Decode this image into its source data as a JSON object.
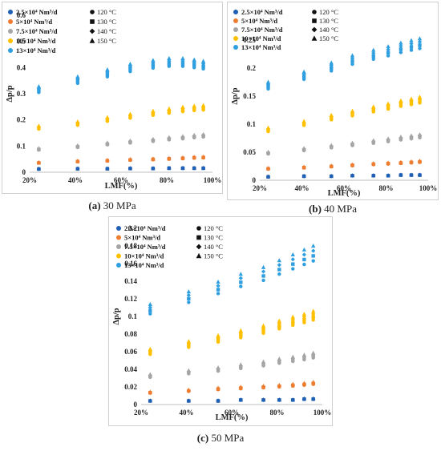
{
  "legend": {
    "flows": [
      "2.5×10⁴ Nm³/d",
      "5×10⁴ Nm³/d",
      "7.5×10⁴ Nm³/d",
      "10×10⁴ Nm³/d",
      "13×10⁴ Nm³/d"
    ],
    "temps": [
      "120 °C",
      "130 °C",
      "140 °C",
      "150 °C"
    ]
  },
  "colors": {
    "series": [
      "#1f5fb4",
      "#ed7d31",
      "#a5a5a5",
      "#ffc000",
      "#2f9fe0"
    ],
    "temp_markers": [
      "circle",
      "square",
      "diamond",
      "triangle"
    ]
  },
  "chart_data": [
    {
      "type": "scatter",
      "title": "",
      "caption_bold": "(a)",
      "caption_rest": " 30 MPa",
      "xlabel": "LMF(%)",
      "ylabel": "Δp/p",
      "x": [
        24,
        41,
        54,
        64,
        74,
        81,
        87,
        92,
        96
      ],
      "xticks": [
        "20%",
        "40%",
        "60%",
        "80%",
        "100%"
      ],
      "xlim": [
        20,
        100
      ],
      "ylim": [
        0,
        0.6
      ],
      "yticks": [
        "0",
        "0.1",
        "0.2",
        "0.3",
        "0.4",
        "0.5",
        "0.6"
      ],
      "series": [
        {
          "name": "2.5×10⁴ Nm³/d",
          "values": [
            0.012,
            0.013,
            0.013,
            0.014,
            0.014,
            0.015,
            0.015,
            0.015,
            0.015
          ]
        },
        {
          "name": "5×10⁴ Nm³/d",
          "values": [
            0.035,
            0.04,
            0.043,
            0.046,
            0.048,
            0.05,
            0.052,
            0.054,
            0.055
          ]
        },
        {
          "name": "7.5×10⁴ Nm³/d",
          "values": [
            0.085,
            0.095,
            0.105,
            0.112,
            0.118,
            0.124,
            0.128,
            0.132,
            0.135
          ]
        },
        {
          "name": "10×10⁴ Nm³/d",
          "values": [
            0.165,
            0.18,
            0.195,
            0.207,
            0.218,
            0.226,
            0.232,
            0.236,
            0.238
          ]
        },
        {
          "name": "13×10⁴ Nm³/d",
          "values": [
            0.305,
            0.34,
            0.365,
            0.385,
            0.398,
            0.405,
            0.405,
            0.4,
            0.395
          ]
        }
      ],
      "temp_spread": [
        0,
        0.025,
        0.05,
        0.075
      ]
    },
    {
      "type": "scatter",
      "title": "",
      "caption_bold": "(b)",
      "caption_rest": " 40 MPa",
      "xlabel": "LMF(%)",
      "ylabel": "Δp/p",
      "x": [
        24,
        41,
        54,
        64,
        74,
        81,
        87,
        92,
        96
      ],
      "xticks": [
        "20%",
        "40%",
        "60%",
        "80%",
        "100%"
      ],
      "xlim": [
        20,
        100
      ],
      "ylim": [
        0,
        0.3
      ],
      "yticks": [
        "0",
        "0.05",
        "0.1",
        "0.15",
        "0.2",
        "0.25"
      ],
      "series": [
        {
          "name": "2.5×10⁴ Nm³/d",
          "values": [
            0.006,
            0.007,
            0.007,
            0.008,
            0.008,
            0.008,
            0.009,
            0.009,
            0.009
          ]
        },
        {
          "name": "5×10⁴ Nm³/d",
          "values": [
            0.02,
            0.022,
            0.024,
            0.026,
            0.028,
            0.029,
            0.03,
            0.031,
            0.032
          ]
        },
        {
          "name": "7.5×10⁴ Nm³/d",
          "values": [
            0.047,
            0.053,
            0.058,
            0.062,
            0.066,
            0.069,
            0.072,
            0.074,
            0.076
          ]
        },
        {
          "name": "10×10⁴ Nm³/d",
          "values": [
            0.087,
            0.098,
            0.108,
            0.115,
            0.122,
            0.127,
            0.132,
            0.135,
            0.138
          ]
        },
        {
          "name": "13×10⁴ Nm³/d",
          "values": [
            0.163,
            0.18,
            0.195,
            0.207,
            0.216,
            0.222,
            0.228,
            0.232,
            0.235
          ]
        }
      ],
      "temp_spread": [
        0,
        0.025,
        0.05,
        0.075
      ]
    },
    {
      "type": "scatter",
      "title": "",
      "caption_bold": "(c)",
      "caption_rest": " 50 MPa",
      "xlabel": "LMF(%)",
      "ylabel": "Δp/p",
      "x": [
        24,
        41,
        54,
        64,
        74,
        81,
        87,
        92,
        96
      ],
      "xticks": [
        "20%",
        "40%",
        "60%",
        "80%",
        "100%"
      ],
      "xlim": [
        20,
        100
      ],
      "ylim": [
        0,
        0.2
      ],
      "yticks": [
        "0",
        "0.02",
        "0.04",
        "0.06",
        "0.08",
        "0.1",
        "0.12",
        "0.14",
        "0.16",
        "0.18",
        "0.2"
      ],
      "series": [
        {
          "name": "2.5×10⁴ Nm³/d",
          "values": [
            0.004,
            0.004,
            0.004,
            0.005,
            0.005,
            0.005,
            0.005,
            0.006,
            0.006
          ]
        },
        {
          "name": "5×10⁴ Nm³/d",
          "values": [
            0.013,
            0.015,
            0.017,
            0.018,
            0.019,
            0.02,
            0.021,
            0.022,
            0.023
          ]
        },
        {
          "name": "7.5×10⁴ Nm³/d",
          "values": [
            0.031,
            0.035,
            0.038,
            0.041,
            0.044,
            0.047,
            0.049,
            0.051,
            0.053
          ]
        },
        {
          "name": "10×10⁴ Nm³/d",
          "values": [
            0.057,
            0.065,
            0.071,
            0.076,
            0.081,
            0.086,
            0.09,
            0.093,
            0.096
          ]
        },
        {
          "name": "13×10⁴ Nm³/d",
          "values": [
            0.103,
            0.116,
            0.126,
            0.134,
            0.141,
            0.148,
            0.154,
            0.159,
            0.163
          ]
        }
      ],
      "temp_spread": [
        0,
        0.035,
        0.07,
        0.105
      ]
    }
  ]
}
